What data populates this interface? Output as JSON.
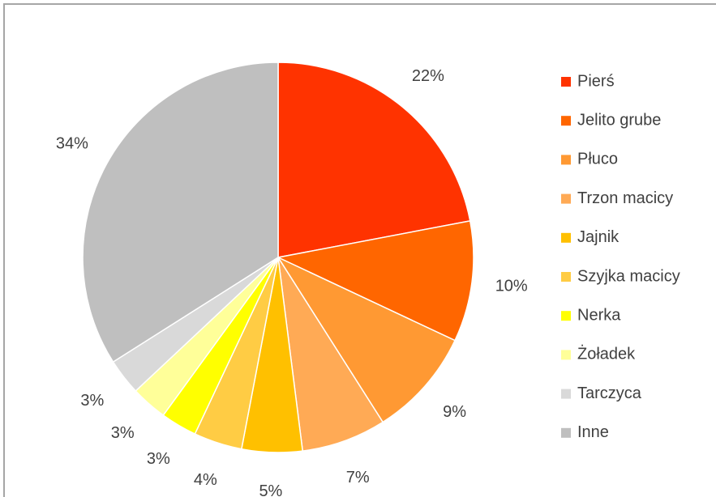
{
  "chart_data": {
    "type": "pie",
    "categories": [
      "Pierś",
      "Jelito grube",
      "Płuco",
      "Trzon macicy",
      "Jajnik",
      "Szyjka macicy",
      "Nerka",
      "Żoładek",
      "Tarczyca",
      "Inne"
    ],
    "values": [
      22,
      10,
      9,
      7,
      5,
      4,
      3,
      3,
      3,
      34
    ],
    "value_labels": [
      "22%",
      "10%",
      "9%",
      "7%",
      "5%",
      "4%",
      "3%",
      "3%",
      "3%",
      "34%"
    ],
    "colors": [
      "#ff3300",
      "#ff6600",
      "#ff9933",
      "#ffaa55",
      "#ffc000",
      "#ffcc44",
      "#ffff00",
      "#ffff99",
      "#d9d9d9",
      "#bfbfbf"
    ],
    "legend": "right"
  }
}
